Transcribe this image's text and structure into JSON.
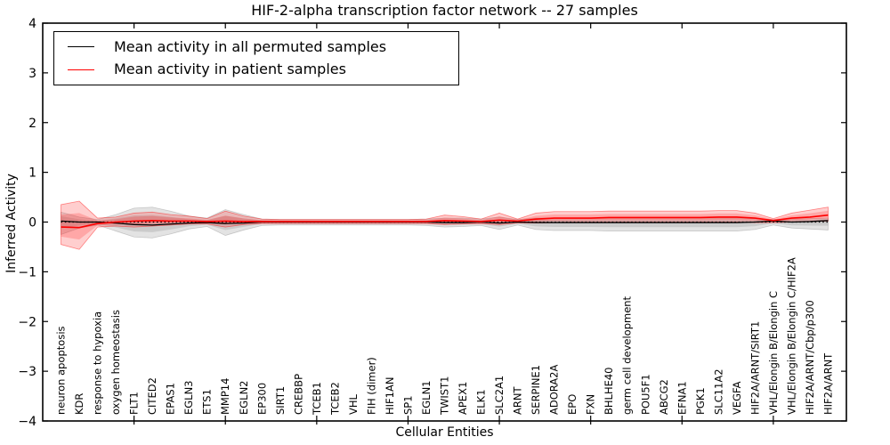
{
  "figure": {
    "background": "#ffffff",
    "accent_red": "#ff0000",
    "line_black": "#000000"
  },
  "legend": {
    "entries": [
      {
        "label": "Mean activity in all permuted samples",
        "color": "#000000"
      },
      {
        "label": "Mean activity in patient samples",
        "color": "#ff0000"
      }
    ]
  },
  "chart_data": {
    "type": "line",
    "title": "HIF-2-alpha transcription factor network -- 27 samples",
    "xlabel": "Cellular Entities",
    "ylabel": "Inferred Activity",
    "ylim": [
      -4,
      4
    ],
    "grid": false,
    "legend_position": "upper left",
    "zero_line_style": "dotted",
    "y_tick_labels": [
      "−4",
      "−3",
      "−2",
      "−1",
      "0",
      "1",
      "2",
      "3",
      "4"
    ],
    "y_tick_values": [
      -4,
      -3,
      -2,
      -1,
      0,
      1,
      2,
      3,
      4
    ],
    "x_tick_indices": [
      4,
      9,
      14,
      19,
      24,
      29,
      34,
      39
    ],
    "categories": [
      "neuron apoptosis",
      "KDR",
      "response to hypoxia",
      "oxygen homeostasis",
      "FLT1",
      "CITED2",
      "EPAS1",
      "EGLN3",
      "ETS1",
      "MMP14",
      "EGLN2",
      "EP300",
      "SIRT1",
      "CREBBP",
      "TCEB1",
      "TCEB2",
      "VHL",
      "FIH (dimer)",
      "HIF1AN",
      "SP1",
      "EGLN1",
      "TWIST1",
      "APEX1",
      "ELK1",
      "SLC2A1",
      "ARNT",
      "SERPINE1",
      "ADORA2A",
      "EPO",
      "FXN",
      "BHLHE40",
      "germ cell development",
      "POU5F1",
      "ABCG2",
      "EFNA1",
      "PGK1",
      "SLC11A2",
      "VEGFA",
      "HIF2A/ARNT/SIRT1",
      "VHL/Elongin B/Elongin C",
      "VHL/Elongin B/Elongin C/HIF2A",
      "HIF2A/ARNT/Cbp/p300",
      "HIF2A/ARNT"
    ],
    "series": [
      {
        "name": "Mean activity in all permuted samples",
        "color": "#000000",
        "band_fill": "rgba(80,80,80,0.16)",
        "band_stroke": "rgba(80,80,80,0.25)",
        "values": [
          0.02,
          0,
          0,
          -0.02,
          -0.05,
          -0.06,
          -0.04,
          -0.02,
          -0.01,
          -0.03,
          -0.02,
          0,
          0,
          0,
          0,
          0,
          0,
          0,
          0,
          0,
          0,
          -0.01,
          -0.01,
          0,
          -0.02,
          0,
          -0.01,
          -0.01,
          -0.01,
          -0.01,
          -0.01,
          -0.01,
          -0.01,
          -0.01,
          -0.01,
          -0.01,
          -0.01,
          -0.01,
          0,
          0.02,
          0,
          0.01,
          0.03
        ],
        "band_hi": [
          0.2,
          0.1,
          0.05,
          0.15,
          0.28,
          0.3,
          0.22,
          0.12,
          0.08,
          0.25,
          0.15,
          0.06,
          0.05,
          0.05,
          0.05,
          0.05,
          0.05,
          0.05,
          0.05,
          0.05,
          0.06,
          0.08,
          0.08,
          0.06,
          0.1,
          0.05,
          0.08,
          0.08,
          0.08,
          0.08,
          0.08,
          0.08,
          0.08,
          0.08,
          0.08,
          0.08,
          0.08,
          0.08,
          0.07,
          0.05,
          0.06,
          0.07,
          0.08
        ],
        "band_lo": [
          -0.25,
          -0.12,
          -0.06,
          -0.18,
          -0.3,
          -0.32,
          -0.24,
          -0.14,
          -0.09,
          -0.27,
          -0.16,
          -0.07,
          -0.06,
          -0.06,
          -0.06,
          -0.06,
          -0.06,
          -0.06,
          -0.06,
          -0.06,
          -0.07,
          -0.1,
          -0.09,
          -0.07,
          -0.15,
          -0.06,
          -0.15,
          -0.17,
          -0.17,
          -0.17,
          -0.18,
          -0.18,
          -0.18,
          -0.18,
          -0.18,
          -0.18,
          -0.18,
          -0.18,
          -0.15,
          -0.06,
          -0.12,
          -0.14,
          -0.16
        ]
      },
      {
        "name": "Mean activity in patient samples",
        "color": "#ff0000",
        "band_fill": "rgba(255,30,30,0.22)",
        "band_stroke": "rgba(255,0,0,0.45)",
        "values": [
          -0.1,
          -0.11,
          -0.03,
          0,
          0.02,
          0.03,
          0.02,
          0.02,
          0.01,
          0.02,
          0.01,
          0.01,
          0.01,
          0.01,
          0.01,
          0.01,
          0.01,
          0.01,
          0.01,
          0.01,
          0.01,
          0.03,
          0.02,
          0.01,
          0.04,
          0.02,
          0.06,
          0.08,
          0.08,
          0.08,
          0.09,
          0.09,
          0.09,
          0.09,
          0.09,
          0.09,
          0.1,
          0.1,
          0.08,
          0.03,
          0.08,
          0.1,
          0.14
        ],
        "band_hi": [
          0.35,
          0.42,
          0.08,
          0.1,
          0.18,
          0.2,
          0.15,
          0.12,
          0.07,
          0.22,
          0.12,
          0.06,
          0.05,
          0.05,
          0.05,
          0.05,
          0.05,
          0.05,
          0.05,
          0.05,
          0.06,
          0.14,
          0.11,
          0.06,
          0.18,
          0.06,
          0.18,
          0.21,
          0.21,
          0.21,
          0.22,
          0.22,
          0.22,
          0.22,
          0.22,
          0.22,
          0.23,
          0.23,
          0.18,
          0.07,
          0.18,
          0.24,
          0.3
        ],
        "band_lo": [
          -0.45,
          -0.55,
          -0.1,
          -0.08,
          -0.1,
          -0.08,
          -0.06,
          -0.04,
          -0.04,
          -0.1,
          -0.05,
          -0.03,
          -0.03,
          -0.03,
          -0.03,
          -0.03,
          -0.03,
          -0.03,
          -0.03,
          -0.03,
          -0.03,
          -0.05,
          -0.04,
          -0.03,
          -0.05,
          -0.02,
          -0.02,
          -0.01,
          0,
          0,
          0,
          0,
          0,
          0,
          0,
          0,
          0,
          0,
          -0.01,
          -0.01,
          0,
          0.01,
          0.02
        ]
      }
    ]
  }
}
